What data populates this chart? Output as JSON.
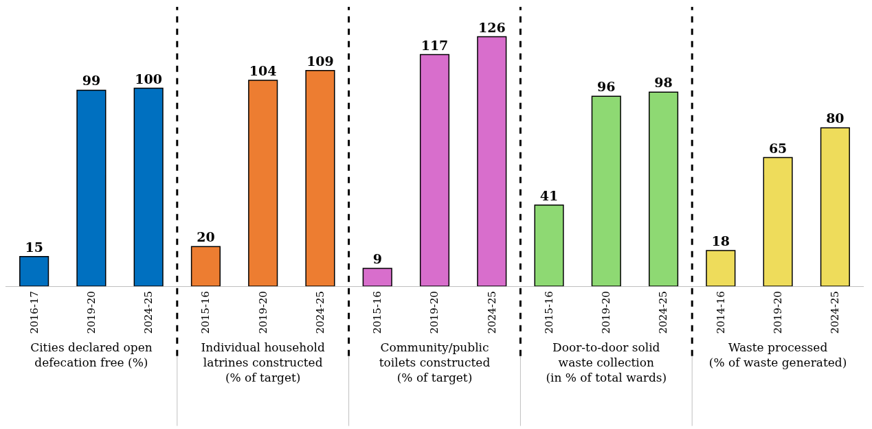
{
  "chart_data": [
    {
      "type": "bar",
      "categories": [
        "2016-17",
        "2019-20",
        "2024-25"
      ],
      "values": [
        15,
        99,
        100
      ],
      "color": "#0070c0",
      "data_labels": true,
      "xlabel": "Cities declared open\ndefecation free (%)",
      "tick_labels": "x"
    },
    {
      "type": "bar",
      "categories": [
        "2015-16",
        "2019-20",
        "2024-25"
      ],
      "values": [
        20,
        104,
        109
      ],
      "color": "#ed7d31",
      "data_labels": true,
      "xlabel": "Individual household\nlatrines constructed\n(% of target)",
      "tick_labels": "x"
    },
    {
      "type": "bar",
      "categories": [
        "2015-16",
        "2019-20",
        "2024-25"
      ],
      "values": [
        9,
        117,
        126
      ],
      "color": "#d86ecc",
      "data_labels": true,
      "xlabel": "Community/public\ntoilets constructed\n(% of target)",
      "tick_labels": "x"
    },
    {
      "type": "bar",
      "categories": [
        "2015-16",
        "2019-20",
        "2024-25"
      ],
      "values": [
        41,
        96,
        98
      ],
      "color": "#8ed973",
      "data_labels": true,
      "xlabel": "Door-to-door solid\nwaste collection\n(in % of total wards)",
      "tick_labels": "x"
    },
    {
      "type": "bar",
      "categories": [
        "2014-16",
        "2019-20",
        "2024-25"
      ],
      "values": [
        18,
        65,
        80
      ],
      "color": "#eedc5b",
      "data_labels": true,
      "xlabel": "Waste processed\n(% of waste generated)",
      "tick_labels": "x"
    }
  ]
}
